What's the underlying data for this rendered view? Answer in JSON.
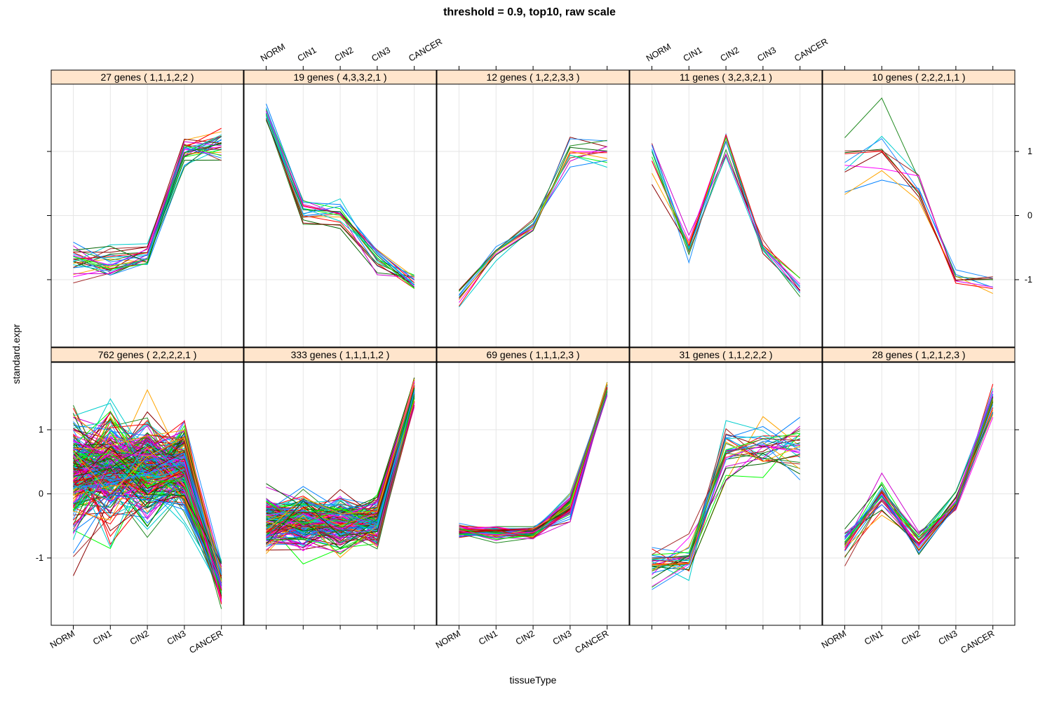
{
  "chart_data": {
    "type": "line",
    "title": "threshold = 0.9, top10, raw scale",
    "xlabel": "tissueType",
    "ylabel": "standard.expr",
    "categories": [
      "NORM",
      "CIN1",
      "CIN2",
      "CIN3",
      "CANCER"
    ],
    "y_ticks": [
      -1,
      0,
      1
    ],
    "y_tick_labels": [
      "-1",
      "0",
      "1"
    ],
    "ylim": [
      -2.05,
      2.05
    ],
    "grid": true,
    "palette": [
      "#0080ff",
      "#ff00ff",
      "#006400",
      "#ff0000",
      "#ffa500",
      "#00ff00",
      "#a52a2a",
      "#00cdcd",
      "#8b0000",
      "#1e90ff",
      "#cd00cd",
      "#228b22"
    ],
    "panels": [
      {
        "label": "27 genes ( 1,1,1,2,2 )",
        "genes": 27,
        "pattern": [
          1,
          1,
          1,
          2,
          2
        ],
        "mean": [
          -0.7,
          -0.72,
          -0.65,
          1.0,
          1.1
        ],
        "spread": [
          0.15,
          0.15,
          0.12,
          0.13,
          0.15
        ],
        "shown_lines": 27
      },
      {
        "label": "19 genes ( 4,3,3,2,1 )",
        "genes": 19,
        "pattern": [
          4,
          3,
          3,
          2,
          1
        ],
        "mean": [
          1.6,
          0.05,
          0.0,
          -0.7,
          -1.05
        ],
        "spread": [
          0.08,
          0.13,
          0.13,
          0.12,
          0.08
        ],
        "shown_lines": 19
      },
      {
        "label": "12 genes ( 1,2,2,3,3 )",
        "genes": 12,
        "pattern": [
          1,
          2,
          2,
          3,
          3
        ],
        "mean": [
          -1.25,
          -0.55,
          -0.15,
          1.0,
          1.0
        ],
        "spread": [
          0.12,
          0.07,
          0.08,
          0.16,
          0.13
        ],
        "shown_lines": 12
      },
      {
        "label": "11 genes ( 3,2,3,2,1 )",
        "genes": 11,
        "pattern": [
          3,
          2,
          3,
          2,
          1
        ],
        "mean": [
          0.95,
          -0.5,
          1.15,
          -0.5,
          -1.15
        ],
        "spread": [
          0.2,
          0.08,
          0.12,
          0.06,
          0.09
        ],
        "shown_lines": 11
      },
      {
        "label": "10 genes ( 2,2,2,1,1 )",
        "genes": 10,
        "pattern": [
          2,
          2,
          2,
          1,
          1
        ],
        "mean": [
          0.75,
          0.95,
          0.5,
          -1.0,
          -1.05
        ],
        "spread": [
          0.32,
          0.3,
          0.2,
          0.08,
          0.08
        ],
        "shown_lines": 10
      },
      {
        "label": "762 genes ( 2,2,2,2,1 )",
        "genes": 762,
        "pattern": [
          2,
          2,
          2,
          2,
          1
        ],
        "mean": [
          0.35,
          0.35,
          0.35,
          0.4,
          -1.4
        ],
        "spread": [
          0.45,
          0.45,
          0.4,
          0.35,
          0.15
        ],
        "shown_lines": 260
      },
      {
        "label": "333 genes ( 1,1,1,1,2 )",
        "genes": 333,
        "pattern": [
          1,
          1,
          1,
          1,
          2
        ],
        "mean": [
          -0.45,
          -0.45,
          -0.45,
          -0.45,
          1.6
        ],
        "spread": [
          0.22,
          0.22,
          0.2,
          0.18,
          0.1
        ],
        "shown_lines": 180
      },
      {
        "label": "69 genes ( 1,1,1,2,3 )",
        "genes": 69,
        "pattern": [
          1,
          1,
          1,
          2,
          3
        ],
        "mean": [
          -0.58,
          -0.6,
          -0.6,
          -0.2,
          1.65
        ],
        "spread": [
          0.05,
          0.05,
          0.05,
          0.1,
          0.05
        ],
        "shown_lines": 69
      },
      {
        "label": "31 genes ( 1,1,2,2,2 )",
        "genes": 31,
        "pattern": [
          1,
          1,
          2,
          2,
          2
        ],
        "mean": [
          -1.1,
          -1.0,
          0.65,
          0.75,
          0.8
        ],
        "spread": [
          0.18,
          0.13,
          0.25,
          0.25,
          0.3
        ],
        "shown_lines": 31
      },
      {
        "label": "28 genes ( 1,2,1,2,3 )",
        "genes": 28,
        "pattern": [
          1,
          2,
          1,
          2,
          3
        ],
        "mean": [
          -0.8,
          -0.05,
          -0.75,
          -0.15,
          1.45
        ],
        "spread": [
          0.13,
          0.15,
          0.12,
          0.12,
          0.13
        ],
        "shown_lines": 28
      }
    ]
  }
}
